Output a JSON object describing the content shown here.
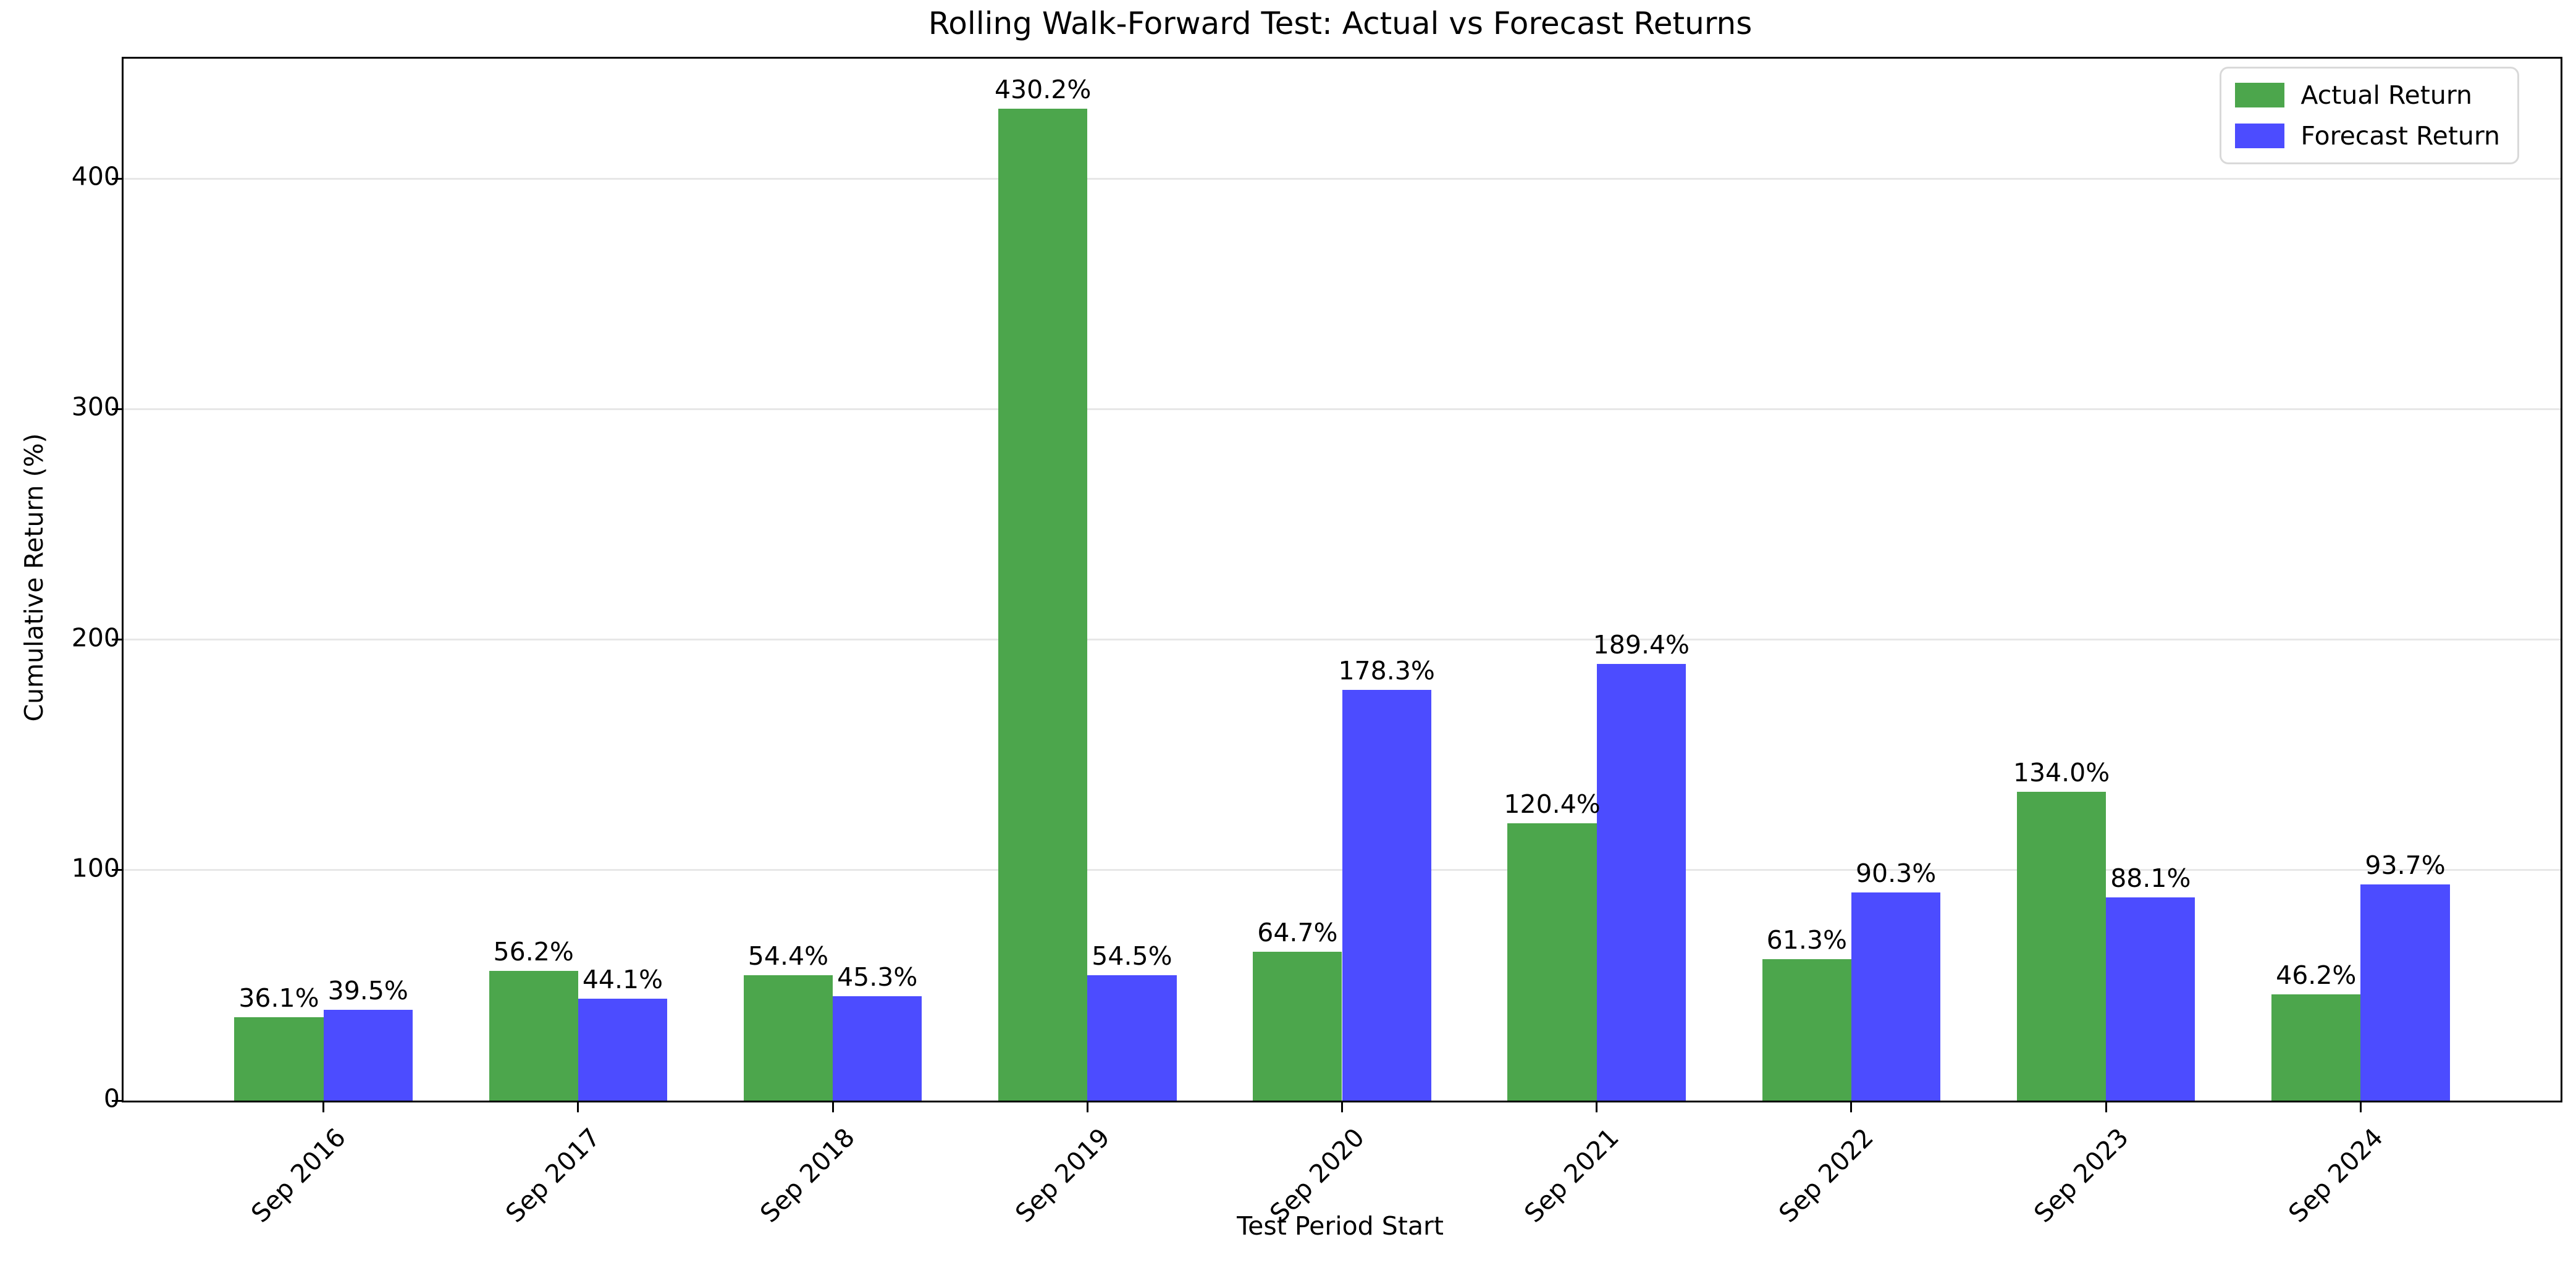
{
  "chart_data": {
    "type": "bar",
    "title": "Rolling Walk-Forward Test: Actual vs Forecast Returns",
    "xlabel": "Test Period Start",
    "ylabel": "Cumulative Return (%)",
    "categories": [
      "Sep 2016",
      "Sep 2017",
      "Sep 2018",
      "Sep 2019",
      "Sep 2020",
      "Sep 2021",
      "Sep 2022",
      "Sep 2023",
      "Sep 2024"
    ],
    "series": [
      {
        "name": "Actual Return",
        "color": "#4CA64C",
        "values": [
          36.1,
          56.2,
          54.4,
          430.2,
          64.7,
          120.4,
          61.3,
          134.0,
          46.2
        ],
        "labels": [
          "36.1%",
          "56.2%",
          "54.4%",
          "430.2%",
          "64.7%",
          "120.4%",
          "61.3%",
          "134.0%",
          "46.2%"
        ]
      },
      {
        "name": "Forecast Return",
        "color": "#4C4CFF",
        "values": [
          39.5,
          44.1,
          45.3,
          54.5,
          178.3,
          189.4,
          90.3,
          88.1,
          93.7
        ],
        "labels": [
          "39.5%",
          "44.1%",
          "45.3%",
          "54.5%",
          "178.3%",
          "189.4%",
          "90.3%",
          "88.1%",
          "93.7%"
        ]
      }
    ],
    "yticks": [
      0,
      100,
      200,
      300,
      400
    ],
    "ylim": [
      0,
      452
    ],
    "grid": true,
    "gridline_color": "#e7e7e7",
    "legend_position": "upper right",
    "bar_group_layout": {
      "bar_width_units": 0.35,
      "x_margin_units": 0.785,
      "x_span_units": 9.57
    }
  }
}
